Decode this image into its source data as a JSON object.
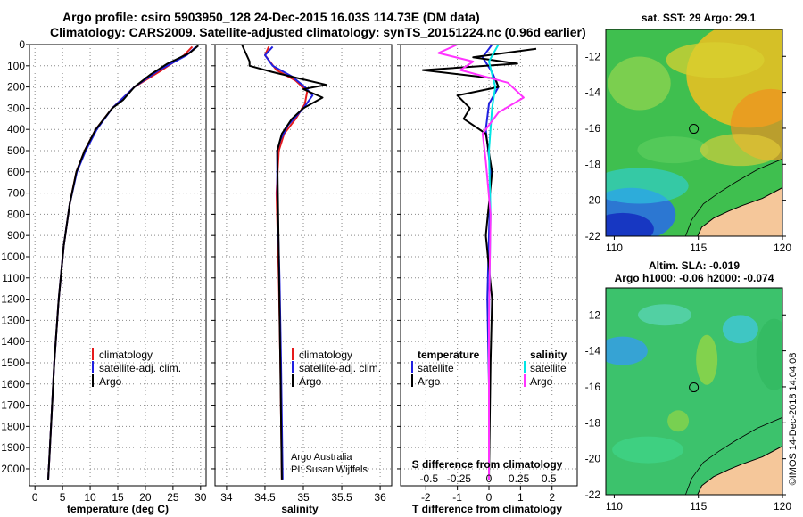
{
  "titles": {
    "line1": "Argo profile: csiro 5903950_128 24-Dec-2015 16.03S 114.73E (DM data)",
    "line2": "Climatology: CARS2009. Satellite-adjusted climatology: synTS_20151224.nc (0.96d earlier)"
  },
  "colors": {
    "climatology": "#e41a1c",
    "satellite": "#2020e0",
    "argo": "#000000",
    "sal_satellite": "#00e5e5",
    "sal_argo": "#ff33ff",
    "land": "#f5c79a"
  },
  "chart_data": [
    {
      "type": "line",
      "name": "temperature-profile",
      "xlabel": "temperature (deg C)",
      "ylabel": "",
      "xlim": [
        -1,
        31
      ],
      "ylim": [
        2080,
        0
      ],
      "xticks": [
        0,
        5,
        10,
        15,
        20,
        25,
        30
      ],
      "yticks": [
        0,
        100,
        200,
        300,
        400,
        500,
        600,
        700,
        800,
        900,
        1000,
        1100,
        1200,
        1300,
        1400,
        1500,
        1600,
        1700,
        1800,
        1900,
        2000
      ],
      "legend": [
        "climatology",
        "satellite-adj. clim.",
        "Argo"
      ],
      "series": [
        {
          "name": "climatology",
          "x": [
            28.5,
            27,
            23,
            18,
            14,
            11,
            9,
            7.5,
            6.3,
            5.2,
            4.3,
            3.5,
            3,
            2.6,
            2.4
          ],
          "y": [
            10,
            50,
            120,
            200,
            300,
            400,
            500,
            600,
            750,
            950,
            1200,
            1500,
            1750,
            1950,
            2050
          ]
        },
        {
          "name": "satellite-adj. clim.",
          "x": [
            29.2,
            27.5,
            22.5,
            18,
            14,
            11.2,
            9.2,
            7.6,
            6.3,
            5.2,
            4.3,
            3.5,
            3,
            2.6,
            2.4
          ],
          "y": [
            10,
            50,
            120,
            200,
            300,
            400,
            500,
            600,
            750,
            950,
            1200,
            1500,
            1750,
            1950,
            2050
          ]
        },
        {
          "name": "Argo",
          "x": [
            29.6,
            28,
            24,
            21,
            18,
            16,
            14,
            11,
            9,
            7.5,
            6.3,
            5.2,
            4.3,
            3.5,
            3,
            2.6,
            2.4
          ],
          "y": [
            5,
            40,
            90,
            140,
            200,
            260,
            300,
            400,
            500,
            600,
            750,
            950,
            1200,
            1500,
            1750,
            1950,
            2050
          ]
        }
      ]
    },
    {
      "type": "line",
      "name": "salinity-profile",
      "xlabel": "salinity",
      "xlim": [
        33.85,
        36.15
      ],
      "ylim": [
        2080,
        0
      ],
      "xticks": [
        34,
        34.5,
        35,
        35.5,
        36
      ],
      "legend": [
        "climatology",
        "satellite-adj. clim.",
        "Argo"
      ],
      "annotation": [
        "Argo Australia",
        "PI: Susan Wijffels"
      ],
      "series": [
        {
          "name": "climatology",
          "x": [
            34.55,
            34.5,
            34.65,
            34.9,
            35.05,
            35.02,
            34.9,
            34.75,
            34.68,
            34.65,
            34.68,
            34.7,
            34.72
          ],
          "y": [
            10,
            50,
            120,
            170,
            220,
            280,
            350,
            420,
            500,
            700,
            1100,
            1500,
            2050
          ]
        },
        {
          "name": "satellite-adj. clim.",
          "x": [
            34.6,
            34.5,
            34.6,
            34.85,
            35.02,
            35.12,
            35.0,
            34.8,
            34.7,
            34.66,
            34.66,
            34.69,
            34.71,
            34.73
          ],
          "y": [
            10,
            50,
            100,
            150,
            200,
            240,
            300,
            380,
            450,
            500,
            700,
            1100,
            1500,
            2050
          ]
        },
        {
          "name": "Argo",
          "x": [
            34.2,
            34.3,
            34.3,
            34.6,
            34.95,
            35.3,
            35.0,
            35.25,
            35.0,
            34.85,
            34.72,
            34.66,
            34.68,
            34.7,
            34.72
          ],
          "y": [
            0,
            80,
            100,
            130,
            160,
            190,
            210,
            250,
            300,
            350,
            420,
            500,
            1000,
            1500,
            2050
          ]
        }
      ]
    },
    {
      "type": "line",
      "name": "difference-profile",
      "xlabel": "T difference from climatology",
      "xlabel_top": "S difference from climatology",
      "xlim": [
        -2.8,
        2.8
      ],
      "ylim": [
        2080,
        0
      ],
      "xticks": [
        -2,
        -1,
        0,
        1,
        2
      ],
      "xticks_top": [
        "-0.5",
        "-0.25",
        "0",
        "0.25",
        "0.5"
      ],
      "legend_left_title": "temperature",
      "legend_right_title": "salinity",
      "legend": [
        "satellite",
        "Argo",
        "satellite",
        "Argo"
      ],
      "series": [
        {
          "name": "T satellite",
          "x": [
            0.1,
            -0.2,
            0.1,
            0.3,
            0.0,
            -0.1,
            0.05,
            0.0,
            -0.05,
            0.0,
            0.0
          ],
          "y": [
            0,
            60,
            130,
            200,
            280,
            400,
            600,
            900,
            1200,
            1600,
            2050
          ]
        },
        {
          "name": "T Argo",
          "x": [
            1.5,
            -0.5,
            0.9,
            -2.1,
            0.2,
            0.3,
            -1.0,
            -0.6,
            -0.8,
            -0.1,
            0.1,
            -0.1,
            0.1,
            0.05,
            0.0
          ],
          "y": [
            20,
            60,
            90,
            120,
            160,
            200,
            240,
            300,
            350,
            420,
            600,
            900,
            1200,
            1500,
            2050
          ]
        },
        {
          "name": "S satellite",
          "x": [
            0.3,
            0.0,
            0.2,
            0.1,
            0.0,
            0.05,
            0.0,
            0.0
          ],
          "y": [
            0,
            80,
            200,
            300,
            500,
            800,
            1300,
            2050
          ]
        },
        {
          "name": "S Argo",
          "x": [
            -1.0,
            -1.6,
            -0.5,
            -0.9,
            0.6,
            1.1,
            0.3,
            -0.2,
            -0.1,
            0.05,
            0.0,
            0.0
          ],
          "y": [
            0,
            40,
            80,
            120,
            180,
            250,
            320,
            420,
            550,
            800,
            1300,
            2050
          ]
        }
      ]
    },
    {
      "type": "heatmap",
      "name": "sst-map",
      "title": "sat. SST: 29 Argo: 29.1",
      "xlim": [
        109.5,
        120
      ],
      "ylim": [
        -22,
        -10.5
      ],
      "xticks": [
        110,
        115,
        120
      ],
      "yticks": [
        -12,
        -14,
        -16,
        -18,
        -20,
        -22
      ],
      "marker": {
        "lon": 114.73,
        "lat": -16.03
      }
    },
    {
      "type": "heatmap",
      "name": "sla-map",
      "title": "Altim. SLA: -0.019",
      "subtitle": "Argo h1000: -0.06 h2000: -0.074",
      "xlim": [
        109.5,
        120
      ],
      "ylim": [
        -22,
        -10.5
      ],
      "xticks": [
        110,
        115,
        120
      ],
      "yticks": [
        -12,
        -14,
        -16,
        -18,
        -20,
        -22
      ],
      "marker": {
        "lon": 114.73,
        "lat": -16.03
      }
    }
  ],
  "credit": "©IMOS 14-Dec-2018 14:04:08"
}
